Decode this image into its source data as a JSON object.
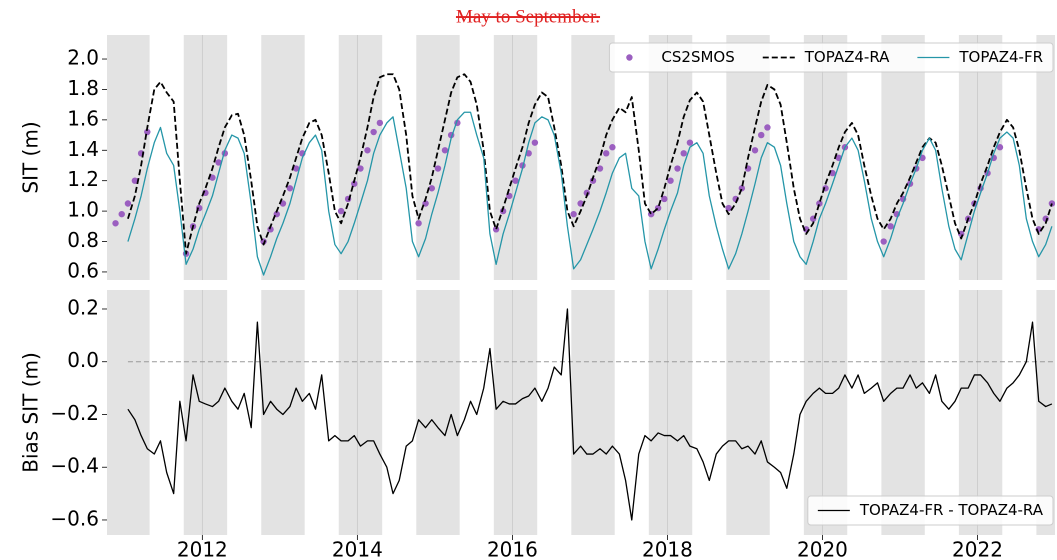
{
  "chart_data": [
    {
      "type": "line",
      "title": "May to September.",
      "ylabel": "SIT (m)",
      "xlim": [
        2010.77,
        2023.0
      ],
      "xticks": [
        2012,
        2014,
        2016,
        2018,
        2020,
        2022
      ],
      "xtick_labels": false,
      "ylim": [
        0.547,
        2.158
      ],
      "yticks": [
        0.6,
        0.8,
        {
          "value": 1,
          "label": "1.0"
        },
        1.2,
        1.4,
        1.6,
        1.8,
        {
          "value": 2,
          "label": "2.0"
        }
      ],
      "grid": "x",
      "legend": "upper right",
      "shaded_spans": [
        [
          2010.76,
          2011.32
        ],
        [
          2011.76,
          2012.32
        ],
        [
          2012.76,
          2013.32
        ],
        [
          2013.76,
          2014.32
        ],
        [
          2014.76,
          2015.32
        ],
        [
          2015.76,
          2016.32
        ],
        [
          2016.76,
          2017.32
        ],
        [
          2017.76,
          2018.32
        ],
        [
          2018.76,
          2019.32
        ],
        [
          2019.76,
          2020.32
        ],
        [
          2020.76,
          2021.32
        ],
        [
          2021.76,
          2022.32
        ],
        [
          2022.76,
          2023.32
        ]
      ],
      "x": [
        2011.04,
        2011.13,
        2011.21,
        2011.29,
        2011.38,
        2011.46,
        2011.54,
        2011.63,
        2011.71,
        2011.79,
        2011.88,
        2011.96,
        2012.04,
        2012.13,
        2012.21,
        2012.29,
        2012.38,
        2012.46,
        2012.54,
        2012.63,
        2012.71,
        2012.79,
        2012.88,
        2012.96,
        2013.04,
        2013.13,
        2013.21,
        2013.29,
        2013.38,
        2013.46,
        2013.54,
        2013.63,
        2013.71,
        2013.79,
        2013.88,
        2013.96,
        2014.04,
        2014.13,
        2014.21,
        2014.29,
        2014.38,
        2014.46,
        2014.54,
        2014.63,
        2014.71,
        2014.79,
        2014.88,
        2014.96,
        2015.04,
        2015.13,
        2015.21,
        2015.29,
        2015.38,
        2015.46,
        2015.54,
        2015.63,
        2015.71,
        2015.79,
        2015.88,
        2015.96,
        2016.04,
        2016.13,
        2016.21,
        2016.29,
        2016.38,
        2016.46,
        2016.54,
        2016.63,
        2016.71,
        2016.79,
        2016.88,
        2016.96,
        2017.04,
        2017.13,
        2017.21,
        2017.29,
        2017.38,
        2017.46,
        2017.54,
        2017.63,
        2017.71,
        2017.79,
        2017.88,
        2017.96,
        2018.04,
        2018.13,
        2018.21,
        2018.29,
        2018.38,
        2018.46,
        2018.54,
        2018.63,
        2018.71,
        2018.79,
        2018.88,
        2018.96,
        2019.04,
        2019.13,
        2019.21,
        2019.29,
        2019.38,
        2019.46,
        2019.54,
        2019.63,
        2019.71,
        2019.79,
        2019.88,
        2019.96,
        2020.04,
        2020.13,
        2020.21,
        2020.29,
        2020.38,
        2020.46,
        2020.54,
        2020.63,
        2020.71,
        2020.79,
        2020.88,
        2020.96,
        2021.04,
        2021.13,
        2021.21,
        2021.29,
        2021.38,
        2021.46,
        2021.54,
        2021.63,
        2021.71,
        2021.79,
        2021.88,
        2021.96,
        2022.04,
        2022.13,
        2022.21,
        2022.29,
        2022.38,
        2022.46,
        2022.54,
        2022.63,
        2022.71,
        2022.79,
        2022.88,
        2022.96
      ],
      "series": [
        {
          "name": "CS2SMOS",
          "color": "#9b5fc0",
          "style": "dots",
          "x": [
            2010.88,
            2010.96,
            2011.04,
            2011.13,
            2011.21,
            2011.29,
            2011.79,
            2011.88,
            2011.96,
            2012.04,
            2012.13,
            2012.21,
            2012.29,
            2012.79,
            2012.88,
            2012.96,
            2013.04,
            2013.13,
            2013.21,
            2013.29,
            2013.79,
            2013.88,
            2013.96,
            2014.04,
            2014.13,
            2014.21,
            2014.29,
            2014.79,
            2014.88,
            2014.96,
            2015.04,
            2015.13,
            2015.21,
            2015.29,
            2015.79,
            2015.88,
            2015.96,
            2016.04,
            2016.13,
            2016.21,
            2016.29,
            2016.79,
            2016.88,
            2016.96,
            2017.04,
            2017.13,
            2017.21,
            2017.29,
            2017.79,
            2017.88,
            2017.96,
            2018.04,
            2018.13,
            2018.21,
            2018.29,
            2018.79,
            2018.88,
            2018.96,
            2019.04,
            2019.13,
            2019.21,
            2019.29,
            2019.79,
            2019.88,
            2019.96,
            2020.04,
            2020.13,
            2020.21,
            2020.29,
            2020.79,
            2020.88,
            2020.96,
            2021.04,
            2021.13,
            2021.21,
            2021.29,
            2021.79,
            2021.88,
            2021.96,
            2022.04,
            2022.13,
            2022.21,
            2022.29,
            2022.79,
            2022.88,
            2022.96
          ],
          "values": [
            0.92,
            0.98,
            1.05,
            1.2,
            1.38,
            1.52,
            0.72,
            0.9,
            1.02,
            1.12,
            1.22,
            1.32,
            1.38,
            0.8,
            0.88,
            0.98,
            1.05,
            1.15,
            1.28,
            1.38,
            1.0,
            1.08,
            1.18,
            1.28,
            1.4,
            1.52,
            1.58,
            0.92,
            1.05,
            1.15,
            1.28,
            1.4,
            1.5,
            1.58,
            0.88,
            1.0,
            1.1,
            1.2,
            1.3,
            1.38,
            1.45,
            0.98,
            1.05,
            1.12,
            1.2,
            1.28,
            1.38,
            1.42,
            0.98,
            1.02,
            1.08,
            1.2,
            1.28,
            1.38,
            1.45,
            1.02,
            1.08,
            1.15,
            1.28,
            1.4,
            1.5,
            1.55,
            0.88,
            0.95,
            1.05,
            1.15,
            1.25,
            1.35,
            1.42,
            0.8,
            0.9,
            0.98,
            1.08,
            1.18,
            1.28,
            1.35,
            0.85,
            0.95,
            1.05,
            1.15,
            1.25,
            1.35,
            1.42,
            0.88,
            0.95,
            1.05
          ]
        },
        {
          "name": "TOPAZ4-RA",
          "color": "#000000",
          "style": "dashed",
          "values": [
            0.95,
            1.1,
            1.3,
            1.55,
            1.8,
            1.85,
            1.78,
            1.72,
            1.2,
            0.72,
            0.9,
            1.05,
            1.15,
            1.28,
            1.42,
            1.55,
            1.63,
            1.64,
            1.5,
            1.2,
            0.9,
            0.78,
            0.9,
            1.0,
            1.1,
            1.22,
            1.35,
            1.48,
            1.58,
            1.6,
            1.5,
            1.25,
            1.0,
            0.92,
            1.05,
            1.2,
            1.35,
            1.55,
            1.75,
            1.88,
            1.9,
            1.9,
            1.8,
            1.5,
            1.1,
            0.95,
            1.08,
            1.22,
            1.4,
            1.6,
            1.78,
            1.88,
            1.9,
            1.85,
            1.7,
            1.4,
            1.0,
            0.88,
            1.02,
            1.15,
            1.28,
            1.42,
            1.58,
            1.7,
            1.78,
            1.75,
            1.55,
            1.3,
            1.0,
            0.9,
            1.0,
            1.1,
            1.22,
            1.35,
            1.5,
            1.6,
            1.68,
            1.65,
            1.75,
            1.4,
            1.05,
            0.98,
            1.02,
            1.15,
            1.3,
            1.45,
            1.62,
            1.73,
            1.78,
            1.72,
            1.5,
            1.25,
            1.05,
            0.98,
            1.05,
            1.15,
            1.35,
            1.55,
            1.72,
            1.83,
            1.8,
            1.7,
            1.45,
            1.15,
            0.95,
            0.85,
            0.92,
            1.05,
            1.18,
            1.3,
            1.42,
            1.52,
            1.58,
            1.5,
            1.3,
            1.1,
            0.95,
            0.88,
            0.95,
            1.05,
            1.12,
            1.22,
            1.32,
            1.42,
            1.48,
            1.45,
            1.3,
            1.1,
            0.92,
            0.82,
            0.95,
            1.05,
            1.18,
            1.3,
            1.42,
            1.52,
            1.6,
            1.55,
            1.4,
            1.15,
            0.95,
            0.85,
            0.92,
            1.05
          ]
        },
        {
          "name": "TOPAZ4-FR",
          "color": "#2596a8",
          "style": "solid",
          "values": [
            0.8,
            0.95,
            1.1,
            1.28,
            1.45,
            1.55,
            1.38,
            1.3,
            1.0,
            0.65,
            0.75,
            0.88,
            0.98,
            1.1,
            1.25,
            1.4,
            1.5,
            1.48,
            1.38,
            1.05,
            0.7,
            0.58,
            0.7,
            0.82,
            0.92,
            1.05,
            1.2,
            1.35,
            1.45,
            1.5,
            1.4,
            1.0,
            0.78,
            0.72,
            0.8,
            0.92,
            1.05,
            1.2,
            1.38,
            1.5,
            1.58,
            1.62,
            1.4,
            1.15,
            0.8,
            0.7,
            0.82,
            0.98,
            1.12,
            1.3,
            1.48,
            1.6,
            1.65,
            1.65,
            1.5,
            1.35,
            0.85,
            0.65,
            0.85,
            0.98,
            1.12,
            1.28,
            1.45,
            1.58,
            1.62,
            1.6,
            1.5,
            1.25,
            0.9,
            0.62,
            0.68,
            0.78,
            0.88,
            1.0,
            1.12,
            1.25,
            1.35,
            1.38,
            1.15,
            1.1,
            0.8,
            0.62,
            0.75,
            0.88,
            1.0,
            1.12,
            1.3,
            1.42,
            1.45,
            1.38,
            1.1,
            0.9,
            0.75,
            0.62,
            0.72,
            0.85,
            1.0,
            1.18,
            1.35,
            1.45,
            1.42,
            1.3,
            1.05,
            0.8,
            0.7,
            0.65,
            0.8,
            0.95,
            1.05,
            1.18,
            1.3,
            1.42,
            1.48,
            1.4,
            1.2,
            0.95,
            0.8,
            0.7,
            0.82,
            0.95,
            1.05,
            1.18,
            1.28,
            1.4,
            1.48,
            1.4,
            1.15,
            0.9,
            0.75,
            0.68,
            0.85,
            1.0,
            1.12,
            1.25,
            1.38,
            1.48,
            1.52,
            1.48,
            1.3,
            0.95,
            0.8,
            0.7,
            0.78,
            0.9
          ]
        }
      ]
    },
    {
      "type": "line",
      "ylabel": "Bias SIT (m)",
      "xlim": [
        2010.77,
        2023.0
      ],
      "xticks": [
        2012,
        2014,
        2016,
        2018,
        2020,
        2022
      ],
      "xtick_labels": true,
      "ylim": [
        -0.657,
        0.272
      ],
      "yticks": [
        {
          "value": -0.6,
          "label": "−0.6"
        },
        {
          "value": -0.4,
          "label": "−0.4"
        },
        {
          "value": -0.2,
          "label": "−0.2"
        },
        {
          "value": 0,
          "label": "0.0"
        },
        0.2
      ],
      "grid": "x",
      "legend": "lower right",
      "reference_line": 0,
      "shaded_spans": [
        [
          2010.76,
          2011.32
        ],
        [
          2011.76,
          2012.32
        ],
        [
          2012.76,
          2013.32
        ],
        [
          2013.76,
          2014.32
        ],
        [
          2014.76,
          2015.32
        ],
        [
          2015.76,
          2016.32
        ],
        [
          2016.76,
          2017.32
        ],
        [
          2017.76,
          2018.32
        ],
        [
          2018.76,
          2019.32
        ],
        [
          2019.76,
          2020.32
        ],
        [
          2020.76,
          2021.32
        ],
        [
          2021.76,
          2022.32
        ],
        [
          2022.76,
          2023.32
        ]
      ],
      "x": [
        2011.04,
        2011.13,
        2011.21,
        2011.29,
        2011.38,
        2011.46,
        2011.54,
        2011.63,
        2011.71,
        2011.79,
        2011.88,
        2011.96,
        2012.04,
        2012.13,
        2012.21,
        2012.29,
        2012.38,
        2012.46,
        2012.54,
        2012.63,
        2012.71,
        2012.79,
        2012.88,
        2012.96,
        2013.04,
        2013.13,
        2013.21,
        2013.29,
        2013.38,
        2013.46,
        2013.54,
        2013.63,
        2013.71,
        2013.79,
        2013.88,
        2013.96,
        2014.04,
        2014.13,
        2014.21,
        2014.29,
        2014.38,
        2014.46,
        2014.54,
        2014.63,
        2014.71,
        2014.79,
        2014.88,
        2014.96,
        2015.04,
        2015.13,
        2015.21,
        2015.29,
        2015.38,
        2015.46,
        2015.54,
        2015.63,
        2015.71,
        2015.79,
        2015.88,
        2015.96,
        2016.04,
        2016.13,
        2016.21,
        2016.29,
        2016.38,
        2016.46,
        2016.54,
        2016.63,
        2016.71,
        2016.79,
        2016.88,
        2016.96,
        2017.04,
        2017.13,
        2017.21,
        2017.29,
        2017.38,
        2017.46,
        2017.54,
        2017.63,
        2017.71,
        2017.79,
        2017.88,
        2017.96,
        2018.04,
        2018.13,
        2018.21,
        2018.29,
        2018.38,
        2018.46,
        2018.54,
        2018.63,
        2018.71,
        2018.79,
        2018.88,
        2018.96,
        2019.04,
        2019.13,
        2019.21,
        2019.29,
        2019.38,
        2019.46,
        2019.54,
        2019.63,
        2019.71,
        2019.79,
        2019.88,
        2019.96,
        2020.04,
        2020.13,
        2020.21,
        2020.29,
        2020.38,
        2020.46,
        2020.54,
        2020.63,
        2020.71,
        2020.79,
        2020.88,
        2020.96,
        2021.04,
        2021.13,
        2021.21,
        2021.29,
        2021.38,
        2021.46,
        2021.54,
        2021.63,
        2021.71,
        2021.79,
        2021.88,
        2021.96,
        2022.04,
        2022.13,
        2022.21,
        2022.29,
        2022.38,
        2022.46,
        2022.54,
        2022.63,
        2022.71,
        2022.79,
        2022.88,
        2022.96
      ],
      "series": [
        {
          "name": "TOPAZ4-FR - TOPAZ4-RA",
          "color": "#000000",
          "style": "solid",
          "values": [
            -0.18,
            -0.22,
            -0.28,
            -0.33,
            -0.35,
            -0.3,
            -0.42,
            -0.5,
            -0.15,
            -0.3,
            -0.05,
            -0.15,
            -0.16,
            -0.17,
            -0.15,
            -0.1,
            -0.15,
            -0.18,
            -0.12,
            -0.25,
            0.15,
            -0.2,
            -0.15,
            -0.18,
            -0.2,
            -0.17,
            -0.1,
            -0.15,
            -0.12,
            -0.18,
            -0.05,
            -0.3,
            -0.28,
            -0.3,
            -0.3,
            -0.28,
            -0.32,
            -0.3,
            -0.3,
            -0.35,
            -0.4,
            -0.5,
            -0.45,
            -0.32,
            -0.3,
            -0.22,
            -0.25,
            -0.22,
            -0.25,
            -0.28,
            -0.2,
            -0.28,
            -0.22,
            -0.15,
            -0.2,
            -0.1,
            0.05,
            -0.18,
            -0.15,
            -0.16,
            -0.16,
            -0.14,
            -0.13,
            -0.1,
            -0.15,
            -0.1,
            -0.02,
            -0.05,
            0.2,
            -0.35,
            -0.32,
            -0.35,
            -0.35,
            -0.33,
            -0.35,
            -0.32,
            -0.35,
            -0.45,
            -0.6,
            -0.35,
            -0.28,
            -0.3,
            -0.27,
            -0.28,
            -0.28,
            -0.3,
            -0.28,
            -0.32,
            -0.33,
            -0.38,
            -0.45,
            -0.35,
            -0.32,
            -0.3,
            -0.3,
            -0.33,
            -0.32,
            -0.35,
            -0.3,
            -0.38,
            -0.4,
            -0.42,
            -0.48,
            -0.35,
            -0.2,
            -0.15,
            -0.12,
            -0.1,
            -0.12,
            -0.12,
            -0.1,
            -0.05,
            -0.1,
            -0.05,
            -0.12,
            -0.1,
            -0.08,
            -0.15,
            -0.12,
            -0.1,
            -0.1,
            -0.05,
            -0.1,
            -0.08,
            -0.12,
            -0.05,
            -0.15,
            -0.18,
            -0.15,
            -0.1,
            -0.1,
            -0.05,
            -0.05,
            -0.08,
            -0.12,
            -0.15,
            -0.1,
            -0.08,
            -0.05,
            0,
            0.15,
            -0.15,
            -0.17,
            -0.16
          ]
        }
      ]
    }
  ]
}
